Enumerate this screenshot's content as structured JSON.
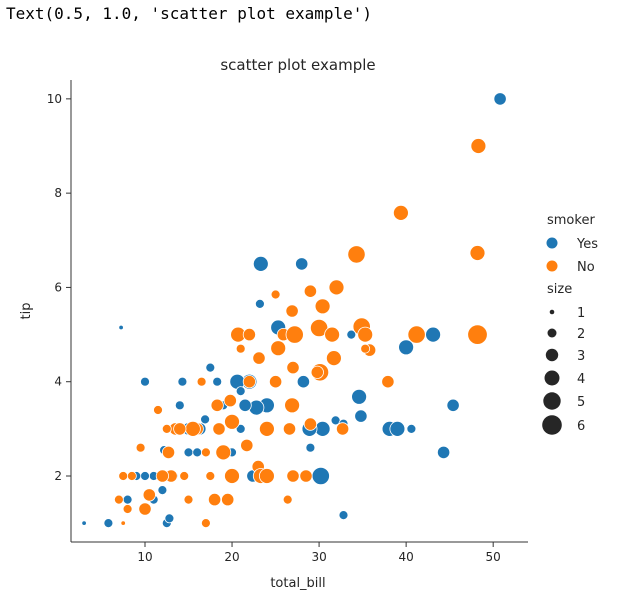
{
  "output_text": "Text(0.5, 1.0, 'scatter plot example')",
  "chart_data": {
    "type": "scatter",
    "title": "scatter plot example",
    "xlabel": "total_bill",
    "ylabel": "tip",
    "xlim": [
      1.5,
      54.0
    ],
    "ylim": [
      0.6,
      10.4
    ],
    "xticks": [
      10,
      20,
      30,
      40,
      50
    ],
    "yticks": [
      2,
      4,
      6,
      8,
      10
    ],
    "grid": false,
    "legend": {
      "placement": "right",
      "hue_title": "smoker",
      "hue_entries": [
        {
          "label": "Yes",
          "color": "#1f77b4"
        },
        {
          "label": "No",
          "color": "#ff7f0e"
        }
      ],
      "size_title": "size",
      "size_entries": [
        "1",
        "2",
        "3",
        "4",
        "5",
        "6"
      ]
    },
    "series": [
      {
        "name": "Yes",
        "color": "#1f77b4",
        "points": [
          [
            50.8,
            10.0,
            3
          ],
          [
            7.25,
            5.15,
            1
          ],
          [
            23.3,
            6.5,
            4
          ],
          [
            28.0,
            6.5,
            3
          ],
          [
            23.2,
            5.65,
            2
          ],
          [
            25.3,
            5.15,
            4
          ],
          [
            28.2,
            4.0,
            3
          ],
          [
            33.7,
            5.0,
            2
          ],
          [
            40.0,
            4.73,
            4
          ],
          [
            43.1,
            5.0,
            4
          ],
          [
            45.4,
            3.5,
            3
          ],
          [
            38.1,
            3.0,
            4
          ],
          [
            39.0,
            3.0,
            4
          ],
          [
            40.6,
            3.0,
            2
          ],
          [
            44.3,
            2.5,
            3
          ],
          [
            34.6,
            3.68,
            4
          ],
          [
            34.8,
            3.27,
            3
          ],
          [
            31.9,
            3.18,
            2
          ],
          [
            32.8,
            3.11,
            2
          ],
          [
            30.4,
            3.0,
            4
          ],
          [
            28.9,
            3.0,
            4
          ],
          [
            29.0,
            2.6,
            2
          ],
          [
            30.2,
            2.0,
            5
          ],
          [
            28.2,
            2.0,
            2
          ],
          [
            24.0,
            2.0,
            4
          ],
          [
            22.4,
            2.0,
            3
          ],
          [
            32.8,
            1.17,
            2
          ],
          [
            24.0,
            3.5,
            4
          ],
          [
            22.8,
            3.45,
            4
          ],
          [
            22.0,
            4.0,
            4
          ],
          [
            20.6,
            4.0,
            4
          ],
          [
            18.3,
            4.0,
            2
          ],
          [
            17.5,
            4.3,
            2
          ],
          [
            21.0,
            3.8,
            2
          ],
          [
            21.5,
            3.5,
            3
          ],
          [
            19.0,
            3.5,
            2
          ],
          [
            16.9,
            3.2,
            2
          ],
          [
            16.3,
            3.0,
            3
          ],
          [
            15.0,
            3.0,
            3
          ],
          [
            14.0,
            3.5,
            2
          ],
          [
            14.3,
            4.0,
            2
          ],
          [
            10.0,
            4.0,
            2
          ],
          [
            12.2,
            2.55,
            2
          ],
          [
            12.0,
            2.0,
            2
          ],
          [
            13.3,
            2.0,
            2
          ],
          [
            11.0,
            2.0,
            2
          ],
          [
            10.0,
            2.0,
            2
          ],
          [
            9.0,
            2.0,
            2
          ],
          [
            12.0,
            1.7,
            2
          ],
          [
            11.0,
            1.5,
            2
          ],
          [
            8.0,
            1.5,
            2
          ],
          [
            3.0,
            1.0,
            1
          ],
          [
            5.8,
            1.0,
            2
          ],
          [
            12.5,
            1.0,
            2
          ],
          [
            12.8,
            1.1,
            2
          ],
          [
            15.0,
            2.5,
            2
          ],
          [
            16.0,
            2.5,
            2
          ],
          [
            17.5,
            2.0,
            2
          ],
          [
            20.0,
            2.5,
            2
          ],
          [
            21.0,
            3.0,
            2
          ]
        ]
      },
      {
        "name": "No",
        "color": "#ff7f0e",
        "points": [
          [
            48.3,
            9.0,
            4
          ],
          [
            39.4,
            7.58,
            4
          ],
          [
            48.2,
            6.73,
            4
          ],
          [
            34.3,
            6.7,
            5
          ],
          [
            32.0,
            6.0,
            4
          ],
          [
            29.0,
            5.92,
            3
          ],
          [
            30.4,
            5.6,
            4
          ],
          [
            25.0,
            5.85,
            2
          ],
          [
            26.9,
            5.5,
            3
          ],
          [
            20.7,
            5.0,
            4
          ],
          [
            22.0,
            5.0,
            3
          ],
          [
            25.9,
            5.0,
            3
          ],
          [
            27.2,
            5.0,
            5
          ],
          [
            30.0,
            5.14,
            5
          ],
          [
            31.5,
            5.0,
            4
          ],
          [
            34.9,
            5.17,
            5
          ],
          [
            35.3,
            5.0,
            4
          ],
          [
            41.2,
            5.0,
            5
          ],
          [
            48.2,
            5.0,
            6
          ],
          [
            35.8,
            4.67,
            3
          ],
          [
            31.7,
            4.5,
            4
          ],
          [
            25.3,
            4.71,
            4
          ],
          [
            23.1,
            4.5,
            3
          ],
          [
            30.1,
            4.2,
            5
          ],
          [
            27.0,
            4.3,
            3
          ],
          [
            25.0,
            4.0,
            3
          ],
          [
            22.0,
            4.0,
            3
          ],
          [
            19.8,
            3.6,
            3
          ],
          [
            18.3,
            3.5,
            3
          ],
          [
            26.9,
            3.5,
            4
          ],
          [
            29.0,
            3.1,
            3
          ],
          [
            32.7,
            3.0,
            3
          ],
          [
            37.9,
            4.0,
            3
          ],
          [
            26.6,
            3.0,
            3
          ],
          [
            24.0,
            3.0,
            4
          ],
          [
            20.0,
            3.15,
            4
          ],
          [
            16.0,
            3.0,
            3
          ],
          [
            15.5,
            3.0,
            4
          ],
          [
            13.5,
            3.0,
            3
          ],
          [
            12.7,
            2.5,
            3
          ],
          [
            19.0,
            2.5,
            4
          ],
          [
            21.7,
            2.65,
            3
          ],
          [
            17.0,
            2.5,
            2
          ],
          [
            23.0,
            2.2,
            3
          ],
          [
            23.3,
            2.0,
            4
          ],
          [
            24.0,
            2.0,
            4
          ],
          [
            27.0,
            2.0,
            3
          ],
          [
            20.0,
            2.0,
            4
          ],
          [
            19.5,
            1.5,
            3
          ],
          [
            18.0,
            1.5,
            3
          ],
          [
            15.0,
            1.5,
            2
          ],
          [
            14.5,
            2.0,
            2
          ],
          [
            13.0,
            2.0,
            3
          ],
          [
            12.0,
            2.0,
            3
          ],
          [
            10.5,
            1.6,
            3
          ],
          [
            10.0,
            1.3,
            3
          ],
          [
            8.5,
            2.0,
            2
          ],
          [
            7.5,
            2.0,
            2
          ],
          [
            7.0,
            1.5,
            2
          ],
          [
            8.0,
            1.3,
            2
          ],
          [
            9.5,
            2.6,
            2
          ],
          [
            11.5,
            3.4,
            2
          ],
          [
            14.0,
            3.0,
            3
          ],
          [
            12.5,
            3.0,
            2
          ],
          [
            16.5,
            4.0,
            2
          ],
          [
            17.0,
            1.0,
            2
          ],
          [
            7.5,
            1.0,
            1
          ],
          [
            17.5,
            2.0,
            2
          ],
          [
            18.5,
            3.0,
            3
          ],
          [
            21.0,
            4.7,
            2
          ],
          [
            26.4,
            1.5,
            2
          ],
          [
            28.5,
            2.0,
            3
          ],
          [
            35.3,
            4.7,
            2
          ],
          [
            29.8,
            4.2,
            3
          ]
        ]
      }
    ]
  }
}
